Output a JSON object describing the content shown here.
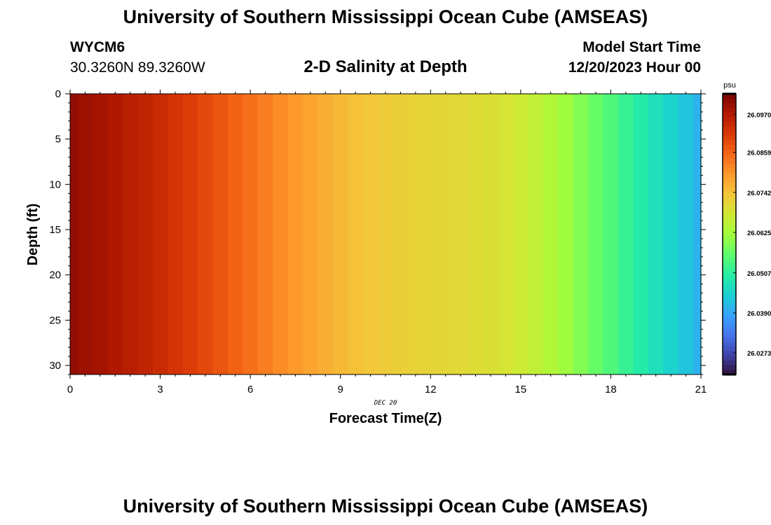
{
  "header": {
    "title": "University of Southern Mississippi Ocean Cube (AMSEAS)",
    "station_id": "WYCM6",
    "coordinates": "30.3260N  89.3260W",
    "subtitle": "2-D Salinity at Depth",
    "model_start_label": "Model Start Time",
    "model_start_value": "12/20/2023 Hour 00"
  },
  "footer": {
    "title": "University of Southern Mississippi Ocean Cube (AMSEAS)"
  },
  "chart_data": {
    "type": "heatmap",
    "title": "2-D Salinity at Depth",
    "xlabel": "Forecast Time(Z)",
    "ylabel": "Depth (ft)",
    "date_label": "DEC 20",
    "x_ticks": [
      "0",
      "3",
      "6",
      "9",
      "12",
      "15",
      "18",
      "21"
    ],
    "y_ticks": [
      "0",
      "5",
      "10",
      "15",
      "20",
      "25",
      "30"
    ],
    "xlim": [
      0,
      21
    ],
    "ylim": [
      0,
      31
    ],
    "colorbar": {
      "unit": "psu",
      "ticks": [
        "26.0970",
        "26.0859",
        "26.0742",
        "26.0625",
        "26.0507",
        "26.0390",
        "26.0273"
      ],
      "range": [
        26.021,
        26.103
      ]
    },
    "time_steps_hours": [
      0,
      0.5,
      1,
      1.5,
      2,
      2.5,
      3,
      3.5,
      4,
      4.5,
      5,
      5.5,
      6,
      6.5,
      7,
      7.5,
      8,
      8.5,
      9,
      9.5,
      10,
      10.5,
      11,
      11.5,
      12,
      12.5,
      13,
      13.5,
      14,
      14.5,
      15,
      15.5,
      16,
      16.5,
      17,
      17.5,
      18,
      18.5,
      19,
      19.5,
      20,
      20.5,
      21
    ],
    "salinity_psu": [
      26.1005,
      26.0995,
      26.0985,
      26.0975,
      26.0962,
      26.095,
      26.0937,
      26.0922,
      26.0907,
      26.0892,
      26.0876,
      26.0859,
      26.0842,
      26.0826,
      26.081,
      26.0794,
      26.0779,
      26.0765,
      26.0752,
      26.0742,
      26.0733,
      26.0726,
      26.072,
      26.0715,
      26.0711,
      26.0707,
      26.0703,
      26.0698,
      26.0692,
      26.0684,
      26.0672,
      26.0656,
      26.0638,
      26.0616,
      26.0592,
      26.0567,
      26.0543,
      26.0519,
      26.0495,
      26.0471,
      26.0448,
      26.0425,
      26.0403
    ]
  }
}
